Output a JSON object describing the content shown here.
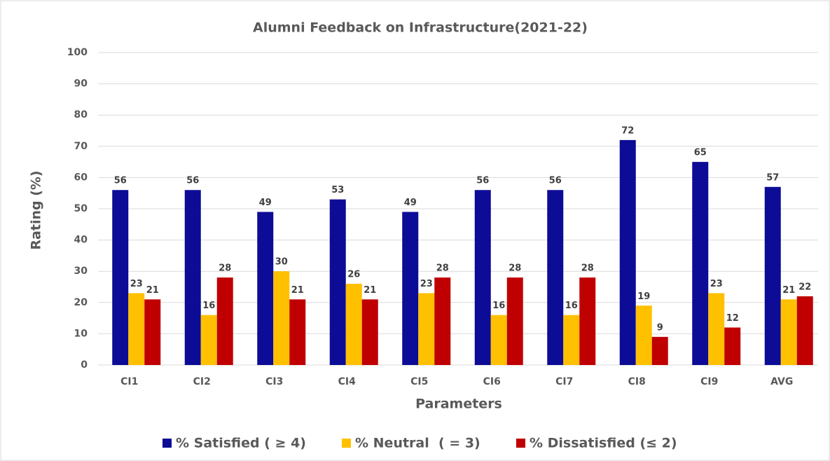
{
  "chart_data": {
    "type": "bar",
    "title": "Alumni Feedback on Infrastructure(2021-22)",
    "xlabel": "Parameters",
    "ylabel": "Rating (%)",
    "categories": [
      "CI1",
      "CI2",
      "CI3",
      "CI4",
      "CI5",
      "CI6",
      "CI7",
      "CI8",
      "CI9",
      "AVG"
    ],
    "series": [
      {
        "name": "% Satisfied ( ≥ 4)",
        "color": "#0c0c96",
        "values": [
          56,
          56,
          49,
          53,
          49,
          56,
          56,
          72,
          65,
          57
        ]
      },
      {
        "name": "% Neutral  ( = 3)",
        "color": "#ffc000",
        "values": [
          23,
          16,
          30,
          26,
          23,
          16,
          16,
          19,
          23,
          21
        ]
      },
      {
        "name": "% Dissatisfied (≤ 2)",
        "color": "#c00000",
        "values": [
          21,
          28,
          21,
          21,
          28,
          28,
          28,
          9,
          12,
          22
        ]
      }
    ],
    "ylim": [
      0,
      100
    ],
    "yticks": [
      0,
      10,
      20,
      30,
      40,
      50,
      60,
      70,
      80,
      90,
      100
    ],
    "grid": true,
    "legend": "bottom"
  }
}
